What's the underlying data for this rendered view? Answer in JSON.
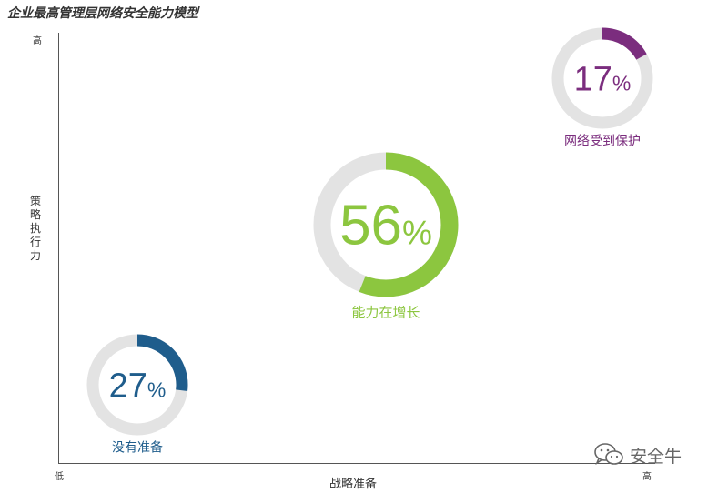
{
  "chart_data": {
    "type": "scatter",
    "title": "企业最高管理层网络安全能力模型",
    "xlabel": "战略准备",
    "ylabel": "策略执行力",
    "x_ticks": {
      "low": "低",
      "high": "高"
    },
    "y_ticks": {
      "high": "高"
    },
    "points": [
      {
        "label": "没有准备",
        "percent": 27,
        "x": 0.15,
        "y": 0.15,
        "size": "small",
        "color": "#1f5d8c"
      },
      {
        "label": "能力在增长",
        "percent": 56,
        "x": 0.55,
        "y": 0.55,
        "size": "large",
        "color": "#8cc63f"
      },
      {
        "label": "网络受到保护",
        "percent": 17,
        "x": 0.93,
        "y": 0.9,
        "size": "small",
        "color": "#7b2d7e"
      }
    ],
    "ring_track_color": "#e3e3e3"
  },
  "watermark": {
    "text": "安全牛",
    "icon": "wechat-icon"
  }
}
